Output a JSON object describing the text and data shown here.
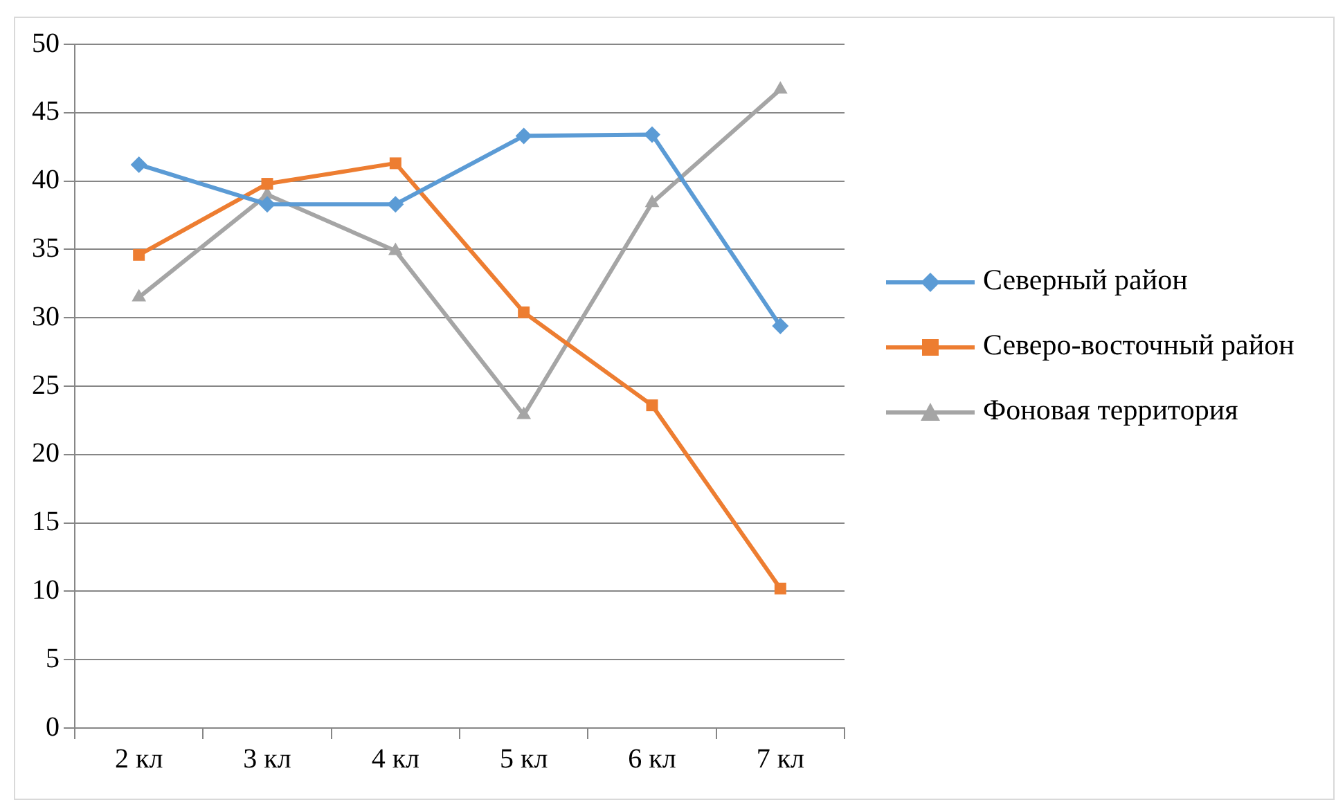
{
  "chart_data": {
    "type": "line",
    "categories": [
      "2 кл",
      "3 кл",
      "4 кл",
      "5 кл",
      "6 кл",
      "7 кл"
    ],
    "series": [
      {
        "name": "Северный район",
        "color": "#5b9bd5",
        "marker": "diamond",
        "values": [
          41.2,
          38.3,
          38.3,
          43.3,
          43.4,
          29.4
        ]
      },
      {
        "name": "Северо-восточный район",
        "color": "#ed7d31",
        "marker": "square",
        "values": [
          34.6,
          39.8,
          41.3,
          30.4,
          23.6,
          10.2
        ]
      },
      {
        "name": "Фоновая территория",
        "color": "#a5a5a5",
        "marker": "triangle",
        "values": [
          31.5,
          39.0,
          34.9,
          22.9,
          38.4,
          46.7
        ]
      }
    ],
    "ylim": [
      0,
      50
    ],
    "yticks": [
      0,
      5,
      10,
      15,
      20,
      25,
      30,
      35,
      40,
      45,
      50
    ],
    "grid": "y",
    "legend": "right",
    "line_style": "solid"
  }
}
